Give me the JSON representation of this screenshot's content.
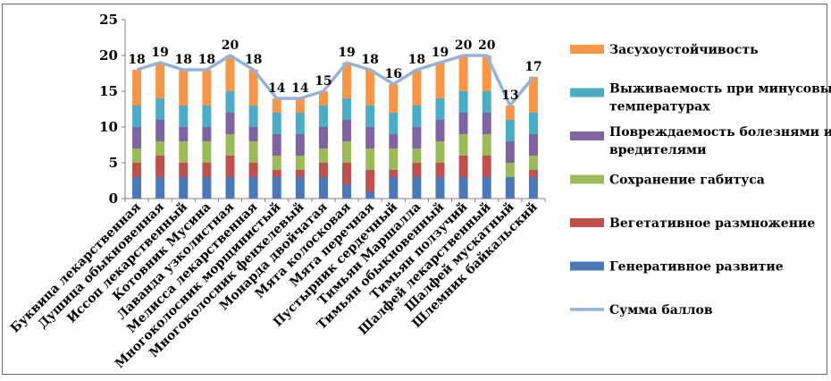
{
  "chart_data": {
    "type": "bar",
    "stacked": true,
    "categories": [
      "Буквица лекарственная",
      "Душица обыкновенная",
      "Иссоп лекарственный",
      "Котовник Мусина",
      "Лаванда узколистная",
      "Мелисса лекарственная",
      "Многоколосник морщинистый",
      "Многоколосник фенхелевый",
      "Монарда двойчатая",
      "Мята колосковая",
      "Мята перечная",
      "Пустырник сердечный",
      "Тимьян Маршалла",
      "Тимьян обыкновенный",
      "Тимьян ползучий",
      "Шалфей лекарственный",
      "Шалфей мускатный",
      "Шлемник байкальский"
    ],
    "series": [
      {
        "name": "Генеративное развитие",
        "color": "#4a78b8",
        "values": [
          3,
          3,
          3,
          3,
          3,
          3,
          3,
          3,
          3,
          2,
          1,
          3,
          3,
          3,
          3,
          3,
          3,
          3
        ]
      },
      {
        "name": "Вегетативное размножение",
        "color": "#c0504d",
        "values": [
          2,
          3,
          2,
          2,
          3,
          2,
          1,
          1,
          2,
          3,
          3,
          1,
          2,
          2,
          3,
          3,
          0,
          1
        ]
      },
      {
        "name": "Сохранение габитуса",
        "color": "#9bbb59",
        "values": [
          2,
          2,
          3,
          3,
          3,
          3,
          2,
          2,
          2,
          3,
          3,
          3,
          2,
          3,
          3,
          3,
          2,
          2
        ]
      },
      {
        "name": "Повреждаемость болезнями и вредителями",
        "color": "#8064a2",
        "values": [
          3,
          3,
          2,
          2,
          3,
          2,
          3,
          3,
          3,
          3,
          3,
          2,
          3,
          3,
          3,
          3,
          3,
          3
        ]
      },
      {
        "name": "Выживаемость при минусовых температурах",
        "color": "#4bacc6",
        "values": [
          3,
          3,
          3,
          3,
          3,
          3,
          3,
          3,
          3,
          3,
          3,
          3,
          3,
          3,
          3,
          3,
          3,
          3
        ]
      },
      {
        "name": "Засухоустойчивость",
        "color": "#f79646",
        "values": [
          5,
          5,
          5,
          5,
          5,
          5,
          2,
          2,
          2,
          5,
          5,
          4,
          5,
          5,
          5,
          5,
          2,
          5
        ]
      }
    ],
    "total_series": {
      "name": "Сумма баллов",
      "color": "#95b3d7",
      "values": [
        18,
        19,
        18,
        18,
        20,
        18,
        14,
        14,
        15,
        19,
        18,
        16,
        18,
        19,
        20,
        20,
        13,
        17
      ]
    },
    "ylim": [
      0,
      25
    ],
    "yticks": [
      "0",
      "5",
      "10",
      "15",
      "20",
      "25"
    ],
    "legend_order": [
      "Засухоустойчивость",
      "Выживаемость при минусовых температурах",
      "Повреждаемость болезнями и вредителями",
      "Сохранение габитуса",
      "Вегетативное размножение",
      "Генеративное развитие",
      "Сумма баллов"
    ],
    "legend_lines": {
      "Засухоустойчивость": [
        "Засухоустойчивость"
      ],
      "Выживаемость при минусовых температурах": [
        "Выживаемость при минусовых",
        "температурах"
      ],
      "Повреждаемость болезнями и вредителями": [
        "Повреждаемость болезнями и",
        "вредителями"
      ],
      "Сохранение габитуса": [
        "Сохранение габитуса"
      ],
      "Вегетативное размножение": [
        "Вегетативное размножение"
      ],
      "Генеративное развитие": [
        "Генеративное развитие"
      ],
      "Сумма баллов": [
        "Сумма баллов"
      ]
    },
    "legend_placement": "right",
    "grid": false,
    "title": "",
    "xlabel": "",
    "ylabel": ""
  }
}
